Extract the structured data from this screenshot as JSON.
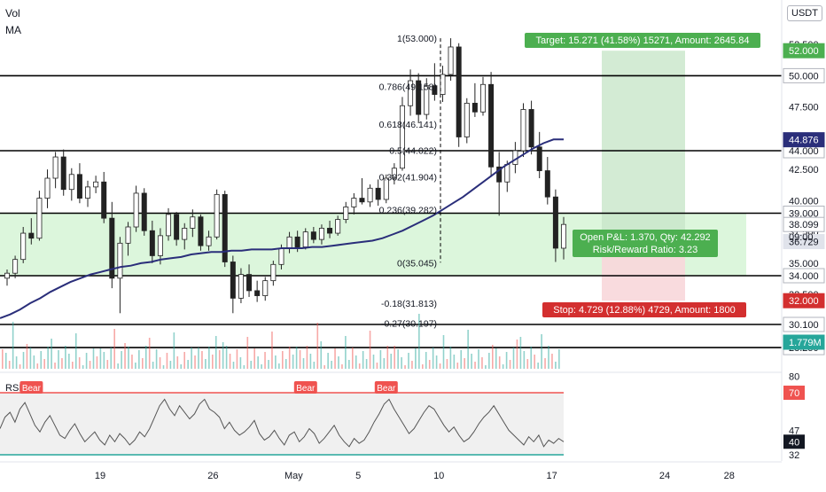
{
  "header": {
    "vol_label": "Vol",
    "ma_label": "MA",
    "currency": "USDT"
  },
  "colors": {
    "up": "#26a69a",
    "down": "#ef5350",
    "candle": "#222222",
    "ma": "#2a2e7a",
    "target_zone": "#c8e6c9",
    "stop_zone": "#f8d7da",
    "long_band": "#d6f5d6",
    "rsi_upper": "#ef5350",
    "rsi_lower": "#26a69a"
  },
  "chart_data": {
    "type": "candlestick",
    "ylim": [
      28.25,
      53.8
    ],
    "price_ticks": [
      {
        "value": 52.5,
        "label": "52.500"
      },
      {
        "value": 47.5,
        "label": "47.500"
      },
      {
        "value": 42.5,
        "label": "42.500"
      },
      {
        "value": 40.0,
        "label": "40.000"
      },
      {
        "value": 37.5,
        "label": "37.500"
      },
      {
        "value": 35.0,
        "label": "35.000"
      },
      {
        "value": 32.5,
        "label": "32.500"
      }
    ],
    "x_ticks": [
      {
        "label": "19",
        "day": 19
      },
      {
        "label": "26",
        "day": 26
      },
      {
        "label": "May",
        "day": 31
      },
      {
        "label": "5",
        "day": 35
      },
      {
        "label": "10",
        "day": 40
      },
      {
        "label": "17",
        "day": 47
      },
      {
        "label": "24",
        "day": 54
      },
      {
        "label": "28",
        "day": 58
      }
    ],
    "horizontal_levels": [
      {
        "value": 50.0,
        "label": "50.000"
      },
      {
        "value": 44.0,
        "label": "44.000"
      },
      {
        "value": 39.0,
        "label": "39.000"
      },
      {
        "value": 34.0,
        "label": "34.000"
      },
      {
        "value": 30.1,
        "label": "30.100"
      },
      {
        "value": 28.25,
        "label": "28.250"
      }
    ],
    "price_labels": [
      {
        "value": 52.0,
        "label": "52.000",
        "style": "green"
      },
      {
        "value": 44.876,
        "label": "44.876",
        "style": "navy"
      },
      {
        "value": 38.099,
        "label": "38.099",
        "style": "white"
      },
      {
        "value": 36.729,
        "label": "36.729",
        "style": "gray"
      },
      {
        "value": 32.0,
        "label": "32.000",
        "style": "red"
      }
    ],
    "countdown_label": "09:00",
    "volume_label": "1.779M",
    "fib_levels": [
      {
        "value": 53.0,
        "label": "1(53.000)"
      },
      {
        "value": 49.158,
        "label": "0.786(49.158)"
      },
      {
        "value": 46.141,
        "label": "0.618(46.141)"
      },
      {
        "value": 44.022,
        "label": "0.5(44.022)"
      },
      {
        "value": 41.904,
        "label": "0.382(41.904)"
      },
      {
        "value": 39.282,
        "label": "0.236(39.282)"
      },
      {
        "value": 35.045,
        "label": "0(35.045)"
      },
      {
        "value": 31.813,
        "label": "-0.18(31.813)"
      },
      {
        "value": 30.197,
        "label": "-0.27(30.197)"
      }
    ],
    "position": {
      "entry": 36.729,
      "target_price": 52.0,
      "stop_price": 32.0,
      "target_text": "Target: 15.271 (41.58%) 15271, Amount: 2645.84",
      "stop_text": "Stop: 4.729 (12.88%) 4729, Amount: 1800",
      "pnl_text": "Open P&L: 1.370, Qty: 42.292",
      "rr_text": "Risk/Reward Ratio: 3.23"
    },
    "rsi": {
      "label": "RSI d/vs",
      "ticks": [
        80,
        70,
        47,
        40,
        32
      ],
      "upper": 70,
      "lower": 32,
      "badge_70": "70",
      "badge_40": "40",
      "bear_label": "Bear",
      "bear_markers": [
        {
          "day": 16
        },
        {
          "day": 33
        },
        {
          "day": 38
        }
      ],
      "values": [
        48,
        55,
        58,
        52,
        60,
        64,
        57,
        50,
        46,
        52,
        56,
        50,
        44,
        42,
        47,
        51,
        45,
        40,
        43,
        46,
        41,
        38,
        44,
        40,
        45,
        42,
        38,
        41,
        46,
        43,
        48,
        55,
        62,
        66,
        60,
        56,
        62,
        58,
        54,
        57,
        63,
        66,
        60,
        58,
        55,
        48,
        52,
        47,
        44,
        46,
        49,
        53,
        45,
        41,
        43,
        47,
        42,
        38,
        44,
        46,
        40,
        43,
        48,
        45,
        39,
        42,
        46,
        50,
        44,
        40,
        37,
        42,
        39,
        41,
        46,
        52,
        57,
        63,
        66,
        60,
        55,
        50,
        45,
        48,
        53,
        58,
        62,
        60,
        55,
        50,
        46,
        49,
        44,
        40,
        42,
        46,
        51,
        55,
        58,
        62,
        57,
        52,
        47,
        44,
        41,
        38,
        43,
        40,
        44,
        37,
        41,
        39,
        42,
        40
      ]
    },
    "ma_values": [
      30.6,
      30.9,
      31.3,
      31.8,
      32.2,
      32.7,
      33.1,
      33.5,
      33.8,
      34.1,
      34.3,
      34.5,
      34.7,
      34.8,
      35.0,
      35.1,
      35.3,
      35.4,
      35.5,
      35.7,
      35.8,
      35.9,
      35.9,
      36.0,
      36.0,
      36.1,
      36.1,
      36.1,
      36.2,
      36.2,
      36.2,
      36.3,
      36.3,
      36.4,
      36.5,
      36.6,
      36.7,
      36.8,
      37.0,
      37.3,
      37.6,
      38.0,
      38.4,
      38.8,
      39.3,
      39.8,
      40.3,
      40.9,
      41.5,
      42.1,
      42.7,
      43.2,
      43.7,
      44.2,
      44.6,
      44.9,
      44.9
    ],
    "candles": [
      [
        33.8,
        34.5,
        33.2,
        34.2
      ],
      [
        34.2,
        35.6,
        33.8,
        35.3
      ],
      [
        35.3,
        37.9,
        35.0,
        37.4
      ],
      [
        37.4,
        38.6,
        36.5,
        37.0
      ],
      [
        37.0,
        40.8,
        36.8,
        40.2
      ],
      [
        40.2,
        42.5,
        39.4,
        41.8
      ],
      [
        41.8,
        43.9,
        41.0,
        43.5
      ],
      [
        43.5,
        44.1,
        40.4,
        40.9
      ],
      [
        40.9,
        42.6,
        40.0,
        42.1
      ],
      [
        42.1,
        43.0,
        39.8,
        40.2
      ],
      [
        40.2,
        41.6,
        39.5,
        41.1
      ],
      [
        41.1,
        42.0,
        40.6,
        41.5
      ],
      [
        41.5,
        42.3,
        38.2,
        38.6
      ],
      [
        38.6,
        39.9,
        33.0,
        33.8
      ],
      [
        33.8,
        37.1,
        31.0,
        36.6
      ],
      [
        36.6,
        38.3,
        35.6,
        37.9
      ],
      [
        37.9,
        41.2,
        37.5,
        40.6
      ],
      [
        40.6,
        41.0,
        37.2,
        37.6
      ],
      [
        37.6,
        38.4,
        35.0,
        35.6
      ],
      [
        35.6,
        37.8,
        34.9,
        37.2
      ],
      [
        37.2,
        39.4,
        36.8,
        38.9
      ],
      [
        38.9,
        39.1,
        36.4,
        36.9
      ],
      [
        36.9,
        38.2,
        36.1,
        37.8
      ],
      [
        37.8,
        39.3,
        37.1,
        38.7
      ],
      [
        38.7,
        38.9,
        36.0,
        36.4
      ],
      [
        36.4,
        37.6,
        36.0,
        37.1
      ],
      [
        37.1,
        40.9,
        36.9,
        40.5
      ],
      [
        40.5,
        40.8,
        34.7,
        35.1
      ],
      [
        35.1,
        35.6,
        31.0,
        32.2
      ],
      [
        32.2,
        34.6,
        31.8,
        34.1
      ],
      [
        34.1,
        34.9,
        32.3,
        32.8
      ],
      [
        32.8,
        33.6,
        31.9,
        32.4
      ],
      [
        32.4,
        33.9,
        32.0,
        33.6
      ],
      [
        33.6,
        35.2,
        33.2,
        34.9
      ],
      [
        34.9,
        36.5,
        34.5,
        36.2
      ],
      [
        36.2,
        37.5,
        35.8,
        37.1
      ],
      [
        37.1,
        37.6,
        35.9,
        36.3
      ],
      [
        36.3,
        37.8,
        36.1,
        37.5
      ],
      [
        37.5,
        37.9,
        36.6,
        36.9
      ],
      [
        36.9,
        38.1,
        36.5,
        37.8
      ],
      [
        37.8,
        38.4,
        37.0,
        37.4
      ],
      [
        37.4,
        38.8,
        37.2,
        38.5
      ],
      [
        38.5,
        39.9,
        38.2,
        39.5
      ],
      [
        39.5,
        40.6,
        38.9,
        40.2
      ],
      [
        40.2,
        41.8,
        39.7,
        39.9
      ],
      [
        39.9,
        41.3,
        39.5,
        41.0
      ],
      [
        41.0,
        41.7,
        39.6,
        40.1
      ],
      [
        40.1,
        42.1,
        39.8,
        41.8
      ],
      [
        41.8,
        43.0,
        41.3,
        42.6
      ],
      [
        42.6,
        48.3,
        42.4,
        47.6
      ],
      [
        47.6,
        50.5,
        46.8,
        49.6
      ],
      [
        49.6,
        50.2,
        46.2,
        46.9
      ],
      [
        46.9,
        49.8,
        46.5,
        49.2
      ],
      [
        49.2,
        51.0,
        48.0,
        48.5
      ],
      [
        48.5,
        50.8,
        47.9,
        50.1
      ],
      [
        50.1,
        53.0,
        49.6,
        52.3
      ],
      [
        52.3,
        52.6,
        44.3,
        45.1
      ],
      [
        45.1,
        48.2,
        44.6,
        47.8
      ],
      [
        47.8,
        49.4,
        46.7,
        47.1
      ],
      [
        47.1,
        49.9,
        46.8,
        49.3
      ],
      [
        49.3,
        50.3,
        41.9,
        42.7
      ],
      [
        42.7,
        43.9,
        38.8,
        41.5
      ],
      [
        41.5,
        43.2,
        40.7,
        42.9
      ],
      [
        42.9,
        44.7,
        42.2,
        44.0
      ],
      [
        44.0,
        47.8,
        43.5,
        47.3
      ],
      [
        47.3,
        48.0,
        43.7,
        44.3
      ],
      [
        44.3,
        45.5,
        41.8,
        42.4
      ],
      [
        42.4,
        43.5,
        39.7,
        40.3
      ],
      [
        40.3,
        40.9,
        35.1,
        36.2
      ],
      [
        36.2,
        38.7,
        35.3,
        38.1
      ]
    ]
  }
}
